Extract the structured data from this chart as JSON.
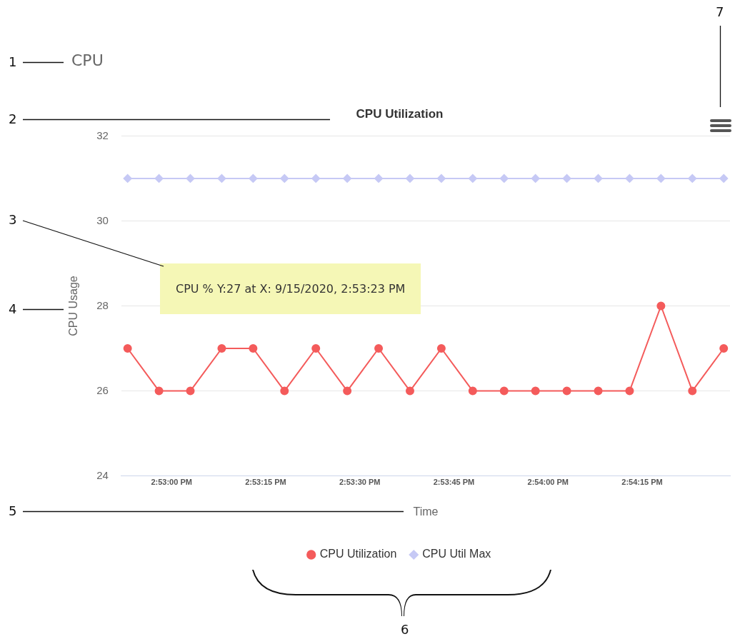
{
  "chart_data": {
    "type": "line",
    "title": "CPU Utilization",
    "xlabel": "Time",
    "ylabel": "CPU Usage",
    "x": [
      "2020-09-15T14:52:53",
      "2020-09-15T14:52:58",
      "2020-09-15T14:53:03",
      "2020-09-15T14:53:08",
      "2020-09-15T14:53:13",
      "2020-09-15T14:53:18",
      "2020-09-15T14:53:23",
      "2020-09-15T14:53:28",
      "2020-09-15T14:53:33",
      "2020-09-15T14:53:38",
      "2020-09-15T14:53:43",
      "2020-09-15T14:53:48",
      "2020-09-15T14:53:53",
      "2020-09-15T14:53:58",
      "2020-09-15T14:54:03",
      "2020-09-15T14:54:08",
      "2020-09-15T14:54:13",
      "2020-09-15T14:54:18",
      "2020-09-15T14:54:23",
      "2020-09-15T14:54:28"
    ],
    "series": [
      {
        "name": "CPU Utilization",
        "color": "#f45b5b",
        "marker": "circle",
        "values": [
          27,
          26,
          26,
          27,
          27,
          26,
          27,
          26,
          27,
          26,
          27,
          26,
          26,
          26,
          26,
          26,
          26,
          28,
          26,
          27
        ]
      },
      {
        "name": "CPU Util Max",
        "color": "#c6c9f5",
        "marker": "diamond",
        "values": [
          31,
          31,
          31,
          31,
          31,
          31,
          31,
          31,
          31,
          31,
          31,
          31,
          31,
          31,
          31,
          31,
          31,
          31,
          31,
          31
        ]
      }
    ],
    "xlim": [
      "2020-09-15T14:52:52",
      "2020-09-15T14:54:29"
    ],
    "xticks": [
      {
        "value": "2020-09-15T14:53:00",
        "label": "2:53:00 PM"
      },
      {
        "value": "2020-09-15T14:53:15",
        "label": "2:53:15 PM"
      },
      {
        "value": "2020-09-15T14:53:30",
        "label": "2:53:30 PM"
      },
      {
        "value": "2020-09-15T14:53:45",
        "label": "2:53:45 PM"
      },
      {
        "value": "2020-09-15T14:54:00",
        "label": "2:54:00 PM"
      },
      {
        "value": "2020-09-15T14:54:15",
        "label": "2:54:15 PM"
      }
    ],
    "ylim": [
      24,
      32
    ],
    "yticks": [
      24,
      26,
      28,
      30,
      32
    ],
    "grid": "y",
    "legend": "bottom",
    "line_style": "solid",
    "annotations": [
      "1",
      "2",
      "3",
      "4",
      "5",
      "6",
      "7",
      "CPU",
      "CPU % Y:27 at X: 9/15/2020, 2:53:23 PM"
    ]
  }
}
